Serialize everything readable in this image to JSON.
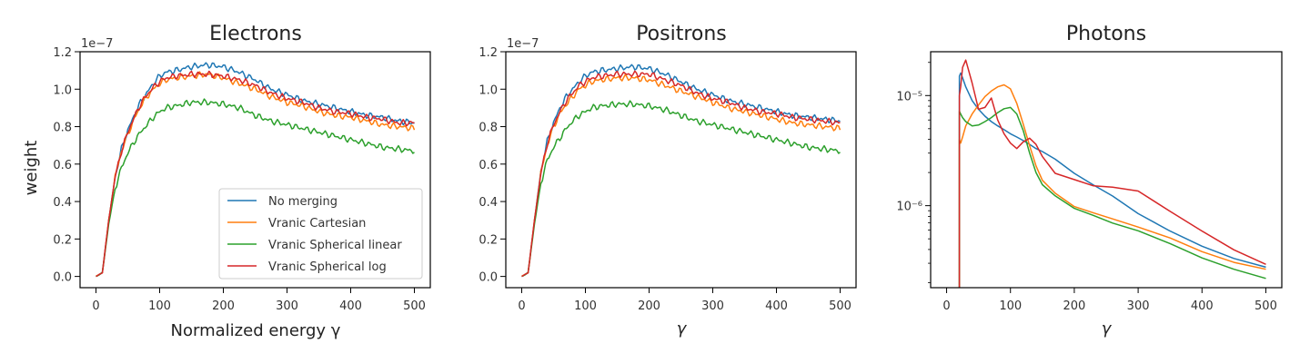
{
  "figure": {
    "colors": [
      "#1f77b4",
      "#ff7f0e",
      "#2ca02c",
      "#d62728"
    ]
  },
  "chart_data": [
    {
      "type": "line",
      "title": "Electrons",
      "xlabel": "Normalized energy γ",
      "ylabel": "weight",
      "y_offset_label": "1e−7",
      "xlim": [
        -25,
        525
      ],
      "ylim": [
        -0.06,
        1.2
      ],
      "xticks": [
        0,
        100,
        200,
        300,
        400,
        500
      ],
      "xtick_labels": [
        "0",
        "100",
        "200",
        "300",
        "400",
        "500"
      ],
      "yticks": [
        0.0,
        0.2,
        0.4,
        0.6,
        0.8,
        1.0,
        1.2
      ],
      "ytick_labels": [
        "0.0",
        "0.2",
        "0.4",
        "0.6",
        "0.8",
        "1.0",
        "1.2"
      ],
      "legend": {
        "placement": "lower-right",
        "entries": [
          "No merging",
          "Vranic Cartesian",
          "Vranic Spherical linear",
          "Vranic Spherical log"
        ]
      },
      "x": [
        0,
        10,
        20,
        30,
        40,
        50,
        60,
        70,
        80,
        90,
        100,
        110,
        125,
        150,
        175,
        200,
        225,
        250,
        275,
        300,
        325,
        350,
        375,
        400,
        425,
        450,
        475,
        500
      ],
      "series": [
        {
          "name": "No merging",
          "values": [
            0.0,
            0.02,
            0.3,
            0.53,
            0.68,
            0.78,
            0.86,
            0.93,
            0.98,
            1.03,
            1.07,
            1.09,
            1.1,
            1.12,
            1.13,
            1.12,
            1.09,
            1.05,
            1.0,
            0.97,
            0.94,
            0.92,
            0.9,
            0.88,
            0.86,
            0.85,
            0.83,
            0.82
          ]
        },
        {
          "name": "Vranic Cartesian",
          "values": [
            0.0,
            0.02,
            0.3,
            0.53,
            0.67,
            0.76,
            0.84,
            0.91,
            0.96,
            1.0,
            1.03,
            1.05,
            1.06,
            1.07,
            1.08,
            1.06,
            1.03,
            1.0,
            0.96,
            0.93,
            0.91,
            0.88,
            0.86,
            0.85,
            0.83,
            0.81,
            0.8,
            0.79
          ]
        },
        {
          "name": "Vranic Spherical linear",
          "values": [
            0.0,
            0.02,
            0.28,
            0.47,
            0.58,
            0.66,
            0.72,
            0.77,
            0.81,
            0.85,
            0.88,
            0.9,
            0.91,
            0.93,
            0.93,
            0.92,
            0.9,
            0.86,
            0.83,
            0.81,
            0.79,
            0.77,
            0.75,
            0.73,
            0.71,
            0.69,
            0.68,
            0.67
          ]
        },
        {
          "name": "Vranic Spherical log",
          "values": [
            0.0,
            0.02,
            0.3,
            0.53,
            0.67,
            0.77,
            0.85,
            0.92,
            0.97,
            1.01,
            1.04,
            1.06,
            1.07,
            1.08,
            1.08,
            1.07,
            1.05,
            1.02,
            0.98,
            0.95,
            0.93,
            0.9,
            0.88,
            0.87,
            0.85,
            0.84,
            0.82,
            0.82
          ]
        }
      ]
    },
    {
      "type": "line",
      "title": "Positrons",
      "xlabel": "γ",
      "ylabel": "",
      "y_offset_label": "1e−7",
      "xlim": [
        -25,
        525
      ],
      "ylim": [
        -0.06,
        1.2
      ],
      "xticks": [
        0,
        100,
        200,
        300,
        400,
        500
      ],
      "xtick_labels": [
        "0",
        "100",
        "200",
        "300",
        "400",
        "500"
      ],
      "yticks": [
        0.0,
        0.2,
        0.4,
        0.6,
        0.8,
        1.0,
        1.2
      ],
      "ytick_labels": [
        "0.0",
        "0.2",
        "0.4",
        "0.6",
        "0.8",
        "1.0",
        "1.2"
      ],
      "x": [
        0,
        10,
        20,
        30,
        40,
        50,
        60,
        70,
        80,
        90,
        100,
        110,
        125,
        150,
        175,
        200,
        225,
        250,
        275,
        300,
        325,
        350,
        375,
        400,
        425,
        450,
        475,
        500
      ],
      "series": [
        {
          "name": "No merging",
          "values": [
            0.0,
            0.02,
            0.3,
            0.56,
            0.72,
            0.82,
            0.9,
            0.96,
            1.0,
            1.04,
            1.07,
            1.09,
            1.1,
            1.11,
            1.12,
            1.11,
            1.08,
            1.04,
            1.0,
            0.97,
            0.94,
            0.92,
            0.9,
            0.88,
            0.86,
            0.85,
            0.84,
            0.83
          ]
        },
        {
          "name": "Vranic Cartesian",
          "values": [
            0.0,
            0.02,
            0.3,
            0.55,
            0.7,
            0.8,
            0.87,
            0.92,
            0.96,
            1.0,
            1.02,
            1.04,
            1.05,
            1.06,
            1.06,
            1.05,
            1.02,
            0.99,
            0.96,
            0.93,
            0.9,
            0.88,
            0.86,
            0.84,
            0.82,
            0.81,
            0.8,
            0.79
          ]
        },
        {
          "name": "Vranic Spherical linear",
          "values": [
            0.0,
            0.02,
            0.28,
            0.5,
            0.62,
            0.69,
            0.74,
            0.79,
            0.83,
            0.86,
            0.88,
            0.9,
            0.91,
            0.92,
            0.92,
            0.91,
            0.89,
            0.86,
            0.83,
            0.81,
            0.79,
            0.77,
            0.75,
            0.73,
            0.71,
            0.69,
            0.68,
            0.67
          ]
        },
        {
          "name": "Vranic Spherical log",
          "values": [
            0.0,
            0.02,
            0.3,
            0.55,
            0.71,
            0.81,
            0.88,
            0.94,
            0.98,
            1.02,
            1.04,
            1.06,
            1.07,
            1.08,
            1.08,
            1.08,
            1.05,
            1.02,
            0.98,
            0.95,
            0.93,
            0.9,
            0.88,
            0.87,
            0.85,
            0.84,
            0.83,
            0.82
          ]
        }
      ]
    },
    {
      "type": "line",
      "title": "Photons",
      "xlabel": "γ",
      "ylabel": "",
      "yscale": "log",
      "xlim": [
        -25,
        525
      ],
      "ylim": [
        1.8e-07,
        2.5e-05
      ],
      "xticks": [
        0,
        100,
        200,
        300,
        400,
        500
      ],
      "xtick_labels": [
        "0",
        "100",
        "200",
        "300",
        "400",
        "500"
      ],
      "yticks": [
        1e-06,
        1e-05
      ],
      "ytick_labels": [
        "10⁻⁶",
        "10⁻⁵"
      ],
      "x": [
        20,
        22,
        25,
        30,
        40,
        50,
        60,
        70,
        80,
        90,
        100,
        110,
        120,
        130,
        140,
        150,
        170,
        200,
        230,
        260,
        300,
        350,
        400,
        450,
        500
      ],
      "series": [
        {
          "name": "No merging",
          "values": [
            1.5e-05,
            1.6e-05,
            1.45e-05,
            1.2e-05,
            9e-06,
            7.5e-06,
            6.5e-06,
            5.8e-06,
            5.3e-06,
            4.9e-06,
            4.5e-06,
            4.2e-06,
            3.9e-06,
            3.6e-06,
            3.3e-06,
            3.1e-06,
            2.6e-06,
            2e-06,
            1.55e-06,
            1.2e-06,
            8.5e-07,
            5.8e-07,
            4.2e-07,
            3.3e-07,
            2.8e-07
          ]
        },
        {
          "name": "Vranic Cartesian",
          "values": [
            4e-06,
            3.7e-06,
            4.2e-06,
            5.3e-06,
            6.8e-06,
            8.2e-06,
            9.8e-06,
            1.1e-05,
            1.2e-05,
            1.25e-05,
            1.15e-05,
            8.5e-06,
            5.5e-06,
            3.5e-06,
            2.3e-06,
            1.7e-06,
            1.3e-06,
            1e-06,
            8.5e-07,
            7.5e-07,
            6.3e-07,
            5e-07,
            3.8e-07,
            3.1e-07,
            2.7e-07
          ]
        },
        {
          "name": "Vranic Spherical linear",
          "values": [
            7.2e-06,
            6.8e-06,
            6.3e-06,
            5.8e-06,
            5.3e-06,
            5.4e-06,
            5.8e-06,
            6.3e-06,
            7e-06,
            7.6e-06,
            7.8e-06,
            6.8e-06,
            4.8e-06,
            3e-06,
            2e-06,
            1.55e-06,
            1.25e-06,
            9.5e-07,
            8e-07,
            7e-07,
            5.8e-07,
            4.5e-07,
            3.4e-07,
            2.7e-07,
            2.2e-07
          ]
        },
        {
          "name": "Vranic Spherical log",
          "values": [
            1e-05,
            1.2e-05,
            1.8e-05,
            2.1e-05,
            1.3e-05,
            7.5e-06,
            7.8e-06,
            9.5e-06,
            6e-06,
            4.5e-06,
            3.7e-06,
            3.3e-06,
            3.8e-06,
            4.1e-06,
            3.6e-06,
            2.8e-06,
            2e-06,
            1.7e-06,
            1.5e-06,
            1.5e-06,
            1.35e-06,
            9e-07,
            6e-07,
            4e-07,
            2.9e-07
          ]
        }
      ]
    }
  ]
}
